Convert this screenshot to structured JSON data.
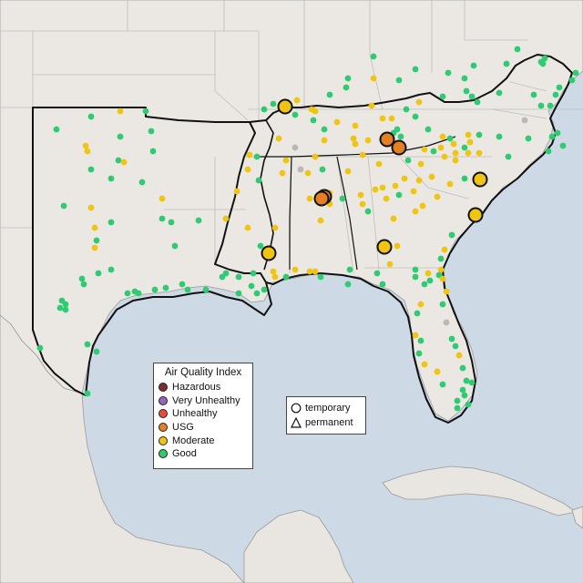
{
  "legend": {
    "title": "Air Quality Index",
    "categories": [
      {
        "label": "Hazardous",
        "color": "#7e2d2d"
      },
      {
        "label": "Very Unhealthy",
        "color": "#9a62b8"
      },
      {
        "label": "Unhealthy",
        "color": "#e84c3d"
      },
      {
        "label": "USG",
        "color": "#e67e22"
      },
      {
        "label": "Moderate",
        "color": "#f1c40f"
      },
      {
        "label": "Good",
        "color": "#2ecc71"
      }
    ],
    "types": [
      {
        "label": "temporary",
        "shape": "circle"
      },
      {
        "label": "permanent",
        "shape": "triangle"
      }
    ]
  },
  "colors": {
    "ocean": "#cdd9e5",
    "land": "#ebe8e4",
    "region": "#e9e5e0",
    "border": "#111111",
    "state_line": "#b5b5b5",
    "no_data": "#b8b8b8"
  }
}
